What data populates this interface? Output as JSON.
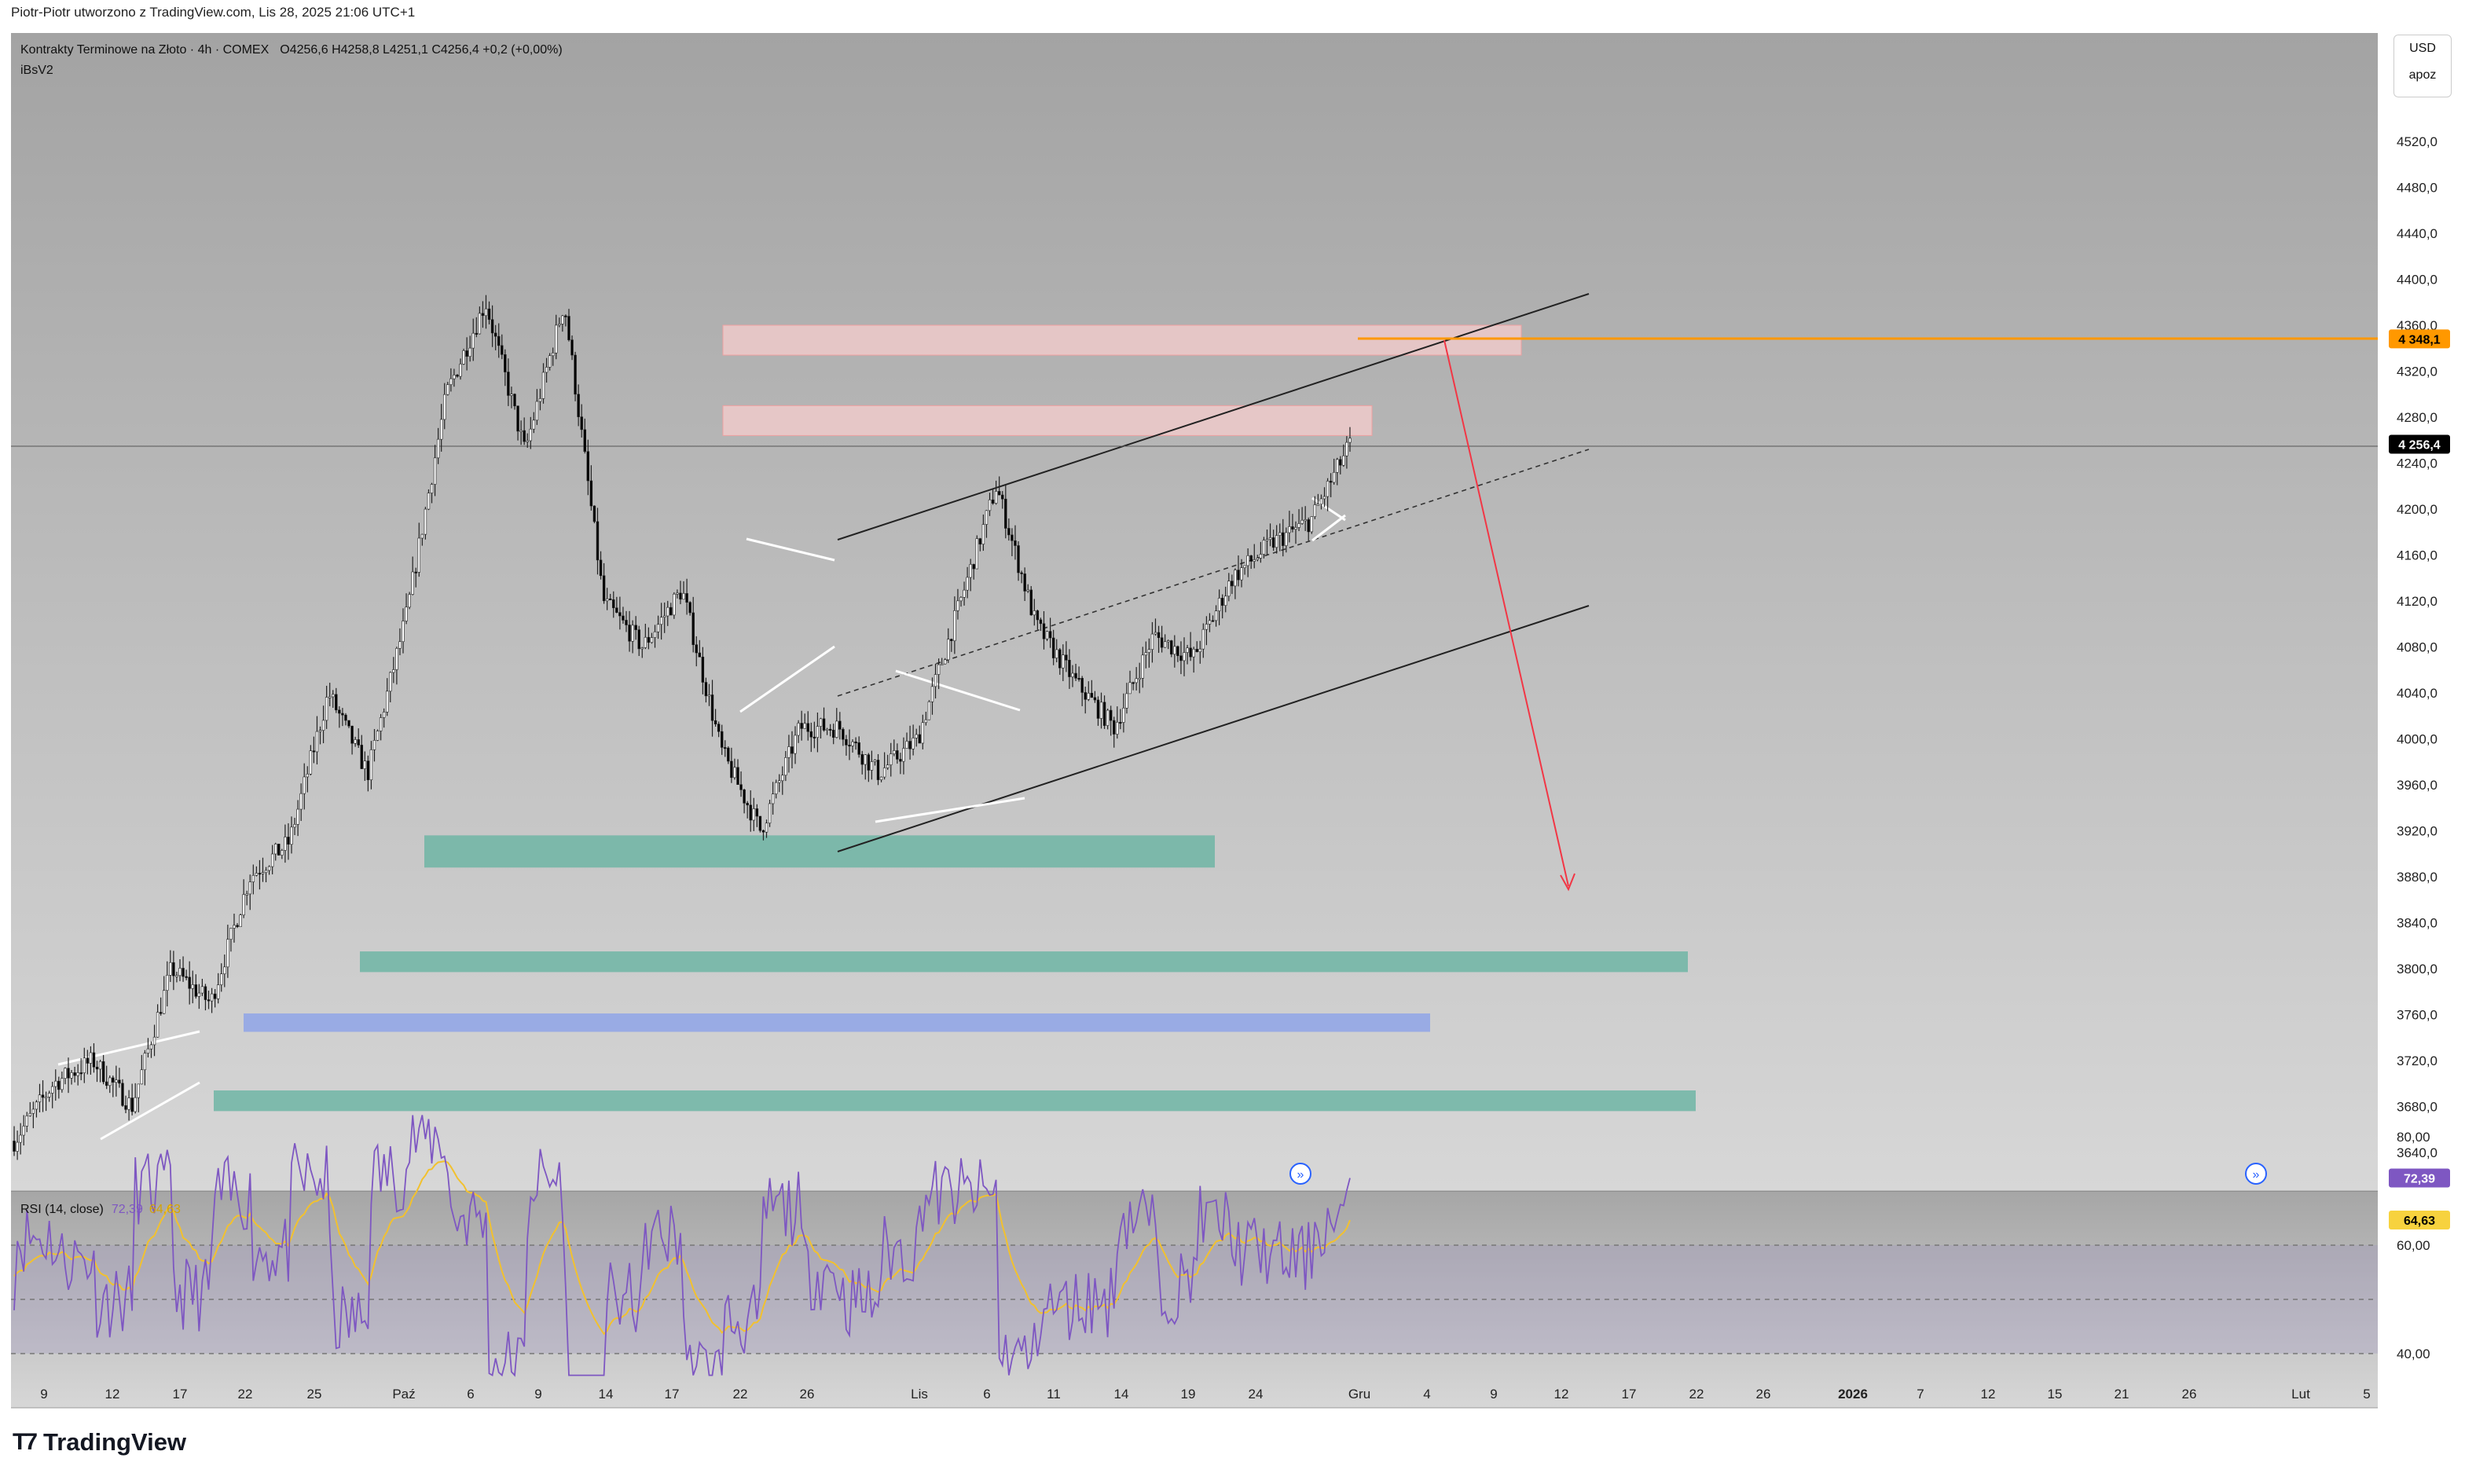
{
  "header": {
    "attribution": "Piotr-Piotr utworzono z TradingView.com, Lis 28, 2025 21:06 UTC+1",
    "symbol": "Kontrakty Terminowe na Złoto · 4h · COMEX",
    "ohlc": "O4256,6  H4258,8  L4251,1  C4256,4  +0,2 (+0,00%)",
    "indicator": "iBsV2"
  },
  "currency_box": {
    "currency": "USD",
    "mode": "apoz"
  },
  "footer": {
    "logo_text": "TradingView"
  },
  "colors": {
    "bull": "#ffffff",
    "bear": "#000000",
    "rsi_line": "#7e57c2",
    "rsi_ma": "#f2c12e",
    "orange_level": "#ff9800",
    "target_arrow": "#f23645",
    "green_zone": "#6fb5a4",
    "blue_zone": "#8fa5e8",
    "red_zone": "#f3cccc"
  },
  "chart_data": [
    {
      "type": "candlestick",
      "title": "Kontrakty Terminowe na Złoto · 4h · COMEX",
      "ylim": [
        3600,
        4600
      ],
      "y_ticks": [
        "4520,0",
        "4480,0",
        "4440,0",
        "4400,0",
        "4360,0",
        "4320,0",
        "4280,0",
        "4240,0",
        "4200,0",
        "4160,0",
        "4120,0",
        "4080,0",
        "4040,0",
        "4000,0",
        "3960,0",
        "3920,0",
        "3880,0",
        "3840,0",
        "3800,0",
        "3760,0",
        "3720,0",
        "3680,0",
        "3640,0"
      ],
      "x_ticks": [
        "9",
        "12",
        "17",
        "22",
        "25",
        "Paź",
        "6",
        "9",
        "14",
        "17",
        "22",
        "26",
        "Lis",
        "6",
        "11",
        "14",
        "19",
        "24",
        "Gru",
        "4",
        "9",
        "12",
        "17",
        "22",
        "26",
        "2026",
        "7",
        "12",
        "15",
        "21",
        "26",
        "Lut",
        "5"
      ],
      "price_anchors": [
        {
          "date": "Sep 9",
          "price": 3650
        },
        {
          "date": "Sep 11",
          "price": 3700
        },
        {
          "date": "Sep 16",
          "price": 3720
        },
        {
          "date": "Sep 18",
          "price": 3680
        },
        {
          "date": "Sep 23",
          "price": 3800
        },
        {
          "date": "Sep 26",
          "price": 3770
        },
        {
          "date": "Sep 30",
          "price": 3880
        },
        {
          "date": "Oct 3",
          "price": 3910
        },
        {
          "date": "Oct 8",
          "price": 4040
        },
        {
          "date": "Oct 9",
          "price": 3970
        },
        {
          "date": "Oct 13",
          "price": 4110
        },
        {
          "date": "Oct 16",
          "price": 4300
        },
        {
          "date": "Oct 17",
          "price": 4380
        },
        {
          "date": "Oct 18",
          "price": 4250
        },
        {
          "date": "Oct 20",
          "price": 4380
        },
        {
          "date": "Oct 21",
          "price": 4120
        },
        {
          "date": "Oct 22",
          "price": 4080
        },
        {
          "date": "Oct 24",
          "price": 4130
        },
        {
          "date": "Oct 27",
          "price": 3990
        },
        {
          "date": "Oct 28",
          "price": 3920
        },
        {
          "date": "Oct 30",
          "price": 4010
        },
        {
          "date": "Nov 3",
          "price": 4010
        },
        {
          "date": "Nov 5",
          "price": 3970
        },
        {
          "date": "Nov 7",
          "price": 4000
        },
        {
          "date": "Nov 10",
          "price": 4110
        },
        {
          "date": "Nov 13",
          "price": 4220
        },
        {
          "date": "Nov 14",
          "price": 4100
        },
        {
          "date": "Nov 17",
          "price": 4050
        },
        {
          "date": "Nov 18",
          "price": 4010
        },
        {
          "date": "Nov 20",
          "price": 4090
        },
        {
          "date": "Nov 21",
          "price": 4070
        },
        {
          "date": "Nov 24",
          "price": 4140
        },
        {
          "date": "Nov 25",
          "price": 4170
        },
        {
          "date": "Nov 26",
          "price": 4190
        },
        {
          "date": "Nov 28",
          "price": 4256.4
        }
      ],
      "levels": [
        {
          "label": "4 348,1",
          "value": 4348.1,
          "color": "#ff9800"
        },
        {
          "label": "4 256,4",
          "value": 4256.4,
          "color": "#000000"
        }
      ],
      "zones": [
        {
          "kind": "supply",
          "from": 4334,
          "to": 4360
        },
        {
          "kind": "supply",
          "from": 4264,
          "to": 4290
        },
        {
          "kind": "demand",
          "from": 3888,
          "to": 3916
        },
        {
          "kind": "demand",
          "from": 3797,
          "to": 3815
        },
        {
          "kind": "demand-blue",
          "from": 3745,
          "to": 3761
        },
        {
          "kind": "demand",
          "from": 3676,
          "to": 3694
        }
      ]
    },
    {
      "type": "line",
      "title": "RSI (14, close)",
      "ylim": [
        35,
        85
      ],
      "y_ticks": [
        "80,00",
        "60,00",
        "40,00"
      ],
      "series": [
        {
          "name": "72,39",
          "last": 72.39,
          "color": "#7e57c2"
        },
        {
          "name": "64,63",
          "last": 64.63,
          "color": "#f2c12e"
        }
      ]
    }
  ]
}
